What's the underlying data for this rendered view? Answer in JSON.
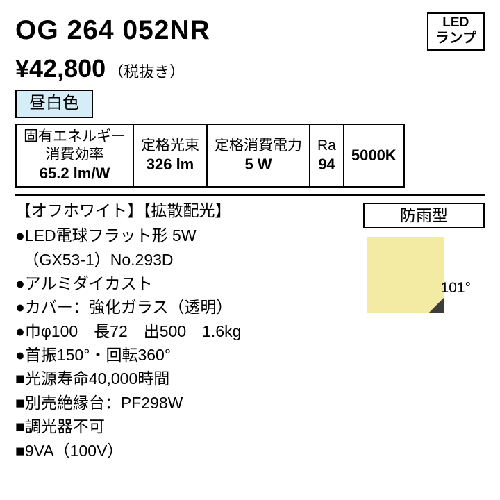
{
  "header": {
    "model": "OG 264 052NR",
    "price": "¥42,800",
    "tax_note": "（税抜き）",
    "lamp_badge_l1": "LED",
    "lamp_badge_l2": "ランプ",
    "color_temp_label": "昼白色",
    "color_temp_bg": "#d5edf6"
  },
  "spec_table": {
    "cols": [
      {
        "label": "固有エネルギー\n消費効率",
        "value": "65.2 lm/W"
      },
      {
        "label": "定格光束",
        "value": "326 lm"
      },
      {
        "label": "定格消費電力",
        "value": "5 W"
      },
      {
        "label": "Ra",
        "value": "94"
      },
      {
        "label_only": "5000K"
      }
    ],
    "border_color": "#000000",
    "bg": "#ffffff",
    "font_size": 21,
    "value_font_size": 22
  },
  "tags": "【オフホワイト】【拡散配光】",
  "bullets": [
    "●LED電球フラット形 5W",
    "　（GX53-1）No.293D",
    "●アルミダイカスト",
    "●カバー：強化ガラス（透明）",
    "●巾φ100　長72　出500　1.6kg",
    "●首振150°・回転360°",
    "■光源寿命40,000時間",
    "■別売絶縁台：PF298W",
    "■調光器不可",
    "■9VA（100V）"
  ],
  "right": {
    "rainproof_label": "防雨型",
    "beam_angle_label": "101°",
    "beam": {
      "size": 110,
      "dark": "#3d3d3d",
      "light": "#f3eaa4",
      "half_angle_deg": 50.5
    }
  }
}
